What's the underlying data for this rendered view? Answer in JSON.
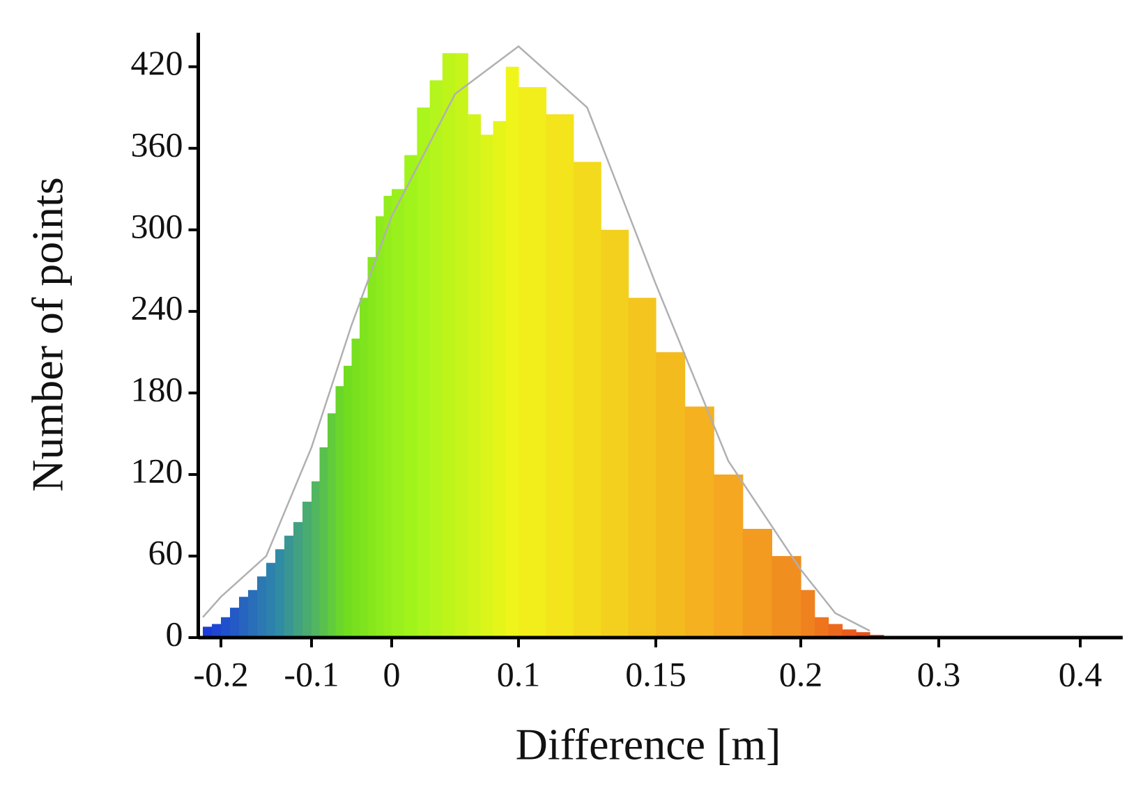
{
  "chart_data": {
    "type": "histogram",
    "xlabel": "Difference [m]",
    "ylabel": "Number of points",
    "bins": [
      -0.22,
      -0.21,
      -0.2,
      -0.19,
      -0.18,
      -0.17,
      -0.16,
      -0.15,
      -0.14,
      -0.13,
      -0.12,
      -0.11,
      -0.1,
      -0.09,
      -0.08,
      -0.07,
      -0.06,
      -0.05,
      -0.04,
      -0.03,
      -0.02,
      -0.01,
      0,
      0.01,
      0.02,
      0.03,
      0.04,
      0.05,
      0.06,
      0.07,
      0.08,
      0.09,
      0.1,
      0.11,
      0.12,
      0.13,
      0.14,
      0.15,
      0.16,
      0.17,
      0.18,
      0.19,
      0.2,
      0.21,
      0.22,
      0.23,
      0.24,
      0.25,
      0.26
    ],
    "values": [
      8,
      10,
      15,
      22,
      30,
      35,
      45,
      55,
      65,
      75,
      85,
      100,
      115,
      140,
      165,
      185,
      200,
      220,
      250,
      280,
      310,
      325,
      330,
      355,
      390,
      410,
      430,
      430,
      385,
      370,
      380,
      420,
      405,
      385,
      350,
      300,
      250,
      210,
      170,
      120,
      80,
      60,
      35,
      15,
      10,
      6,
      4,
      2
    ],
    "colormap": [
      "#1c3cd8",
      "#2f8aa8",
      "#6fdc1e",
      "#a4f51c",
      "#f2f51a",
      "#f5a521",
      "#e6421b"
    ],
    "curve": {
      "color": "#b0b0b0",
      "x": [
        -0.22,
        -0.2,
        -0.15,
        -0.1,
        -0.05,
        0,
        0.05,
        0.1,
        0.125,
        0.15,
        0.175,
        0.2,
        0.225,
        0.25
      ],
      "values": [
        15,
        30,
        60,
        140,
        230,
        310,
        400,
        435,
        390,
        260,
        130,
        50,
        18,
        5
      ]
    },
    "xlim": [
      -0.225,
      0.43
    ],
    "xticks": [
      -0.2,
      -0.1,
      0,
      0.1,
      0.15,
      0.2,
      0.3,
      0.4
    ],
    "ylim": [
      0,
      445
    ],
    "yticks": [
      0,
      60,
      120,
      180,
      240,
      300,
      360,
      420
    ]
  }
}
